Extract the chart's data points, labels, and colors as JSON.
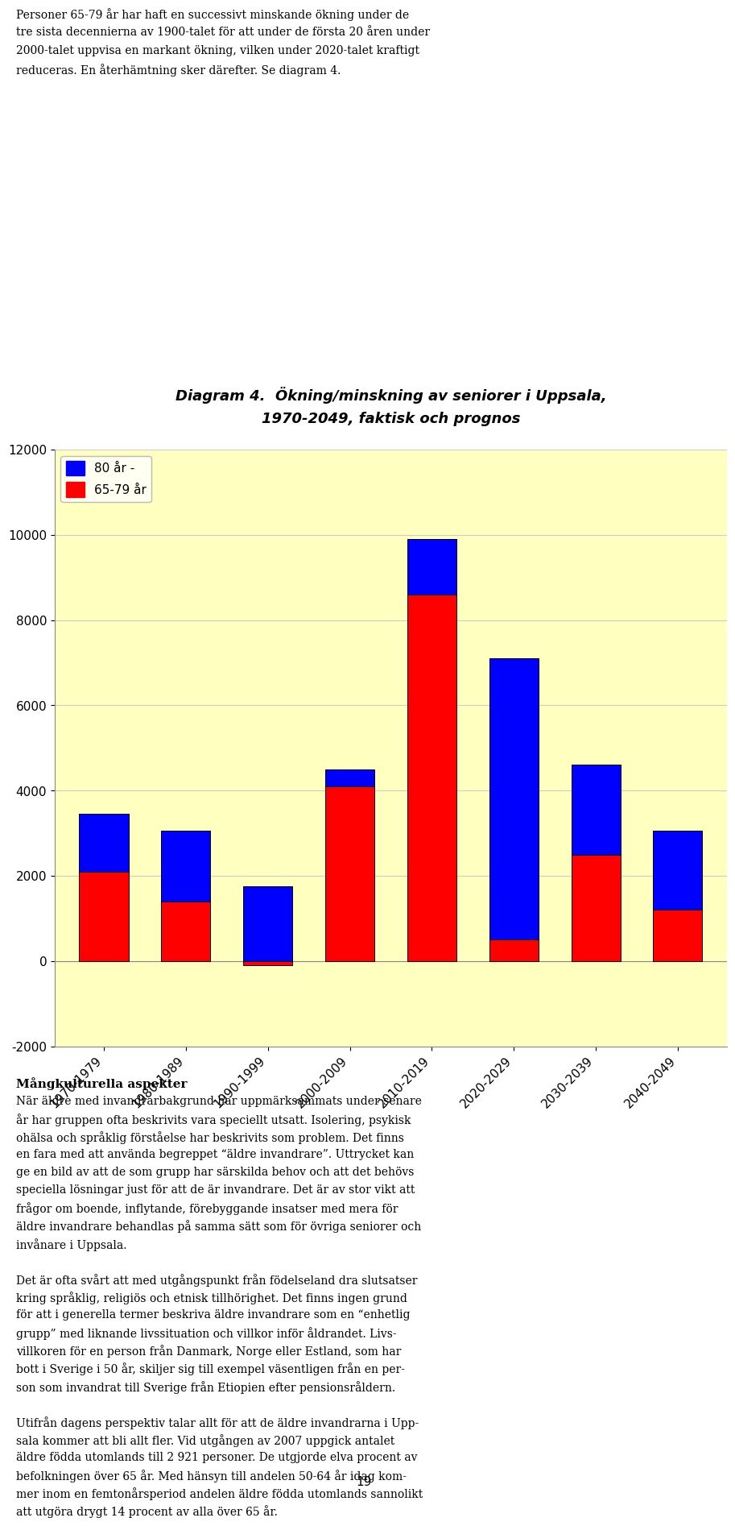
{
  "title_line1": "Diagram 4.  Ökning/minskning av seniorer i Uppsala,",
  "title_line2": "1970-2049, faktisk och prognos",
  "categories": [
    "1970-1979",
    "1980-1989",
    "1990-1999",
    "2000-2009",
    "2010-2019",
    "2020-2029",
    "2030-2039",
    "2040-2049"
  ],
  "values_65_79": [
    2100,
    1400,
    -100,
    4100,
    8600,
    500,
    2500,
    1200
  ],
  "values_80plus": [
    1350,
    1650,
    1750,
    400,
    1300,
    6600,
    2100,
    1850
  ],
  "color_65_79": "#FF0000",
  "color_80plus": "#0000FF",
  "legend_80plus": "80 år -",
  "legend_65_79": "65-79 år",
  "ylim_min": -2000,
  "ylim_max": 12000,
  "yticks": [
    -2000,
    0,
    2000,
    4000,
    6000,
    8000,
    10000,
    12000
  ],
  "background_color": "#FFFFC0",
  "grid_color": "#CCCCCC",
  "bar_edge_color": "#000000",
  "bar_width": 0.6,
  "page_bg": "#FFFFFF",
  "text_above": [
    "Personer 65-79 år har haft en successivt minskande ökning under de",
    "tre sista decennierna av 1900-talet för att under de första 20 åren under",
    "2000-talet uppvisa en markant ökning, vilken under 2020-talet kraftigt",
    "reduceras. En återhämtning sker därefter. Se diagram 4."
  ],
  "text_below_heading": "Mångkulturella aspekter",
  "text_below": [
    "När äldre med invandrarbakgrund har uppmärksammats under senare",
    "år har gruppen ofta beskrivits vara speciellt utsatt. Isolering, psykisk",
    "ohälsa och språklig förståelse har beskrivits som problem. Det finns",
    "en fara med att använda begreppet “äldre invandrare”. Uttrycket kan",
    "ge en bild av att de som grupp har särskilda behov och att det behövs",
    "speciella lösningar just för att de är invandrare. Det är av stor vikt att",
    "frågor om boende, inflytande, förebyggande insatser med mera för",
    "äldre invandrare behandlas på samma sätt som för övriga seniorer och",
    "invånare i Uppsala.",
    "",
    "Det är ofta svårt att med utgångspunkt från födelseland dra slutsatser",
    "kring språklig, religiös och etnisk tillhörighet. Det finns ingen grund",
    "för att i generella termer beskriva äldre invandrare som en “enhetlig",
    "grupp” med liknande livssituation och villkor inför åldrandet. Livs-",
    "villkoren för en person från Danmark, Norge eller Estland, som har",
    "bott i Sverige i 50 år, skiljer sig till exempel väsentligen från en per-",
    "son som invandrat till Sverige från Etiopien efter pensionsråldern.",
    "",
    "Utifrån dagens perspektiv talar allt för att de äldre invandrarna i Upp-",
    "sala kommer att bli allt fler. Vid utgången av 2007 uppgick antalet",
    "äldre födda utomlands till 2 921 personer. De utgjorde elva procent av",
    "befolkningen över 65 år. Med hänsyn till andelen 50-64 år idag kom-",
    "mer inom en femtonårsperiod andelen äldre födda utomlands sannolikt",
    "att utgöra drygt 14 procent av alla över 65 år."
  ],
  "page_number": "19"
}
